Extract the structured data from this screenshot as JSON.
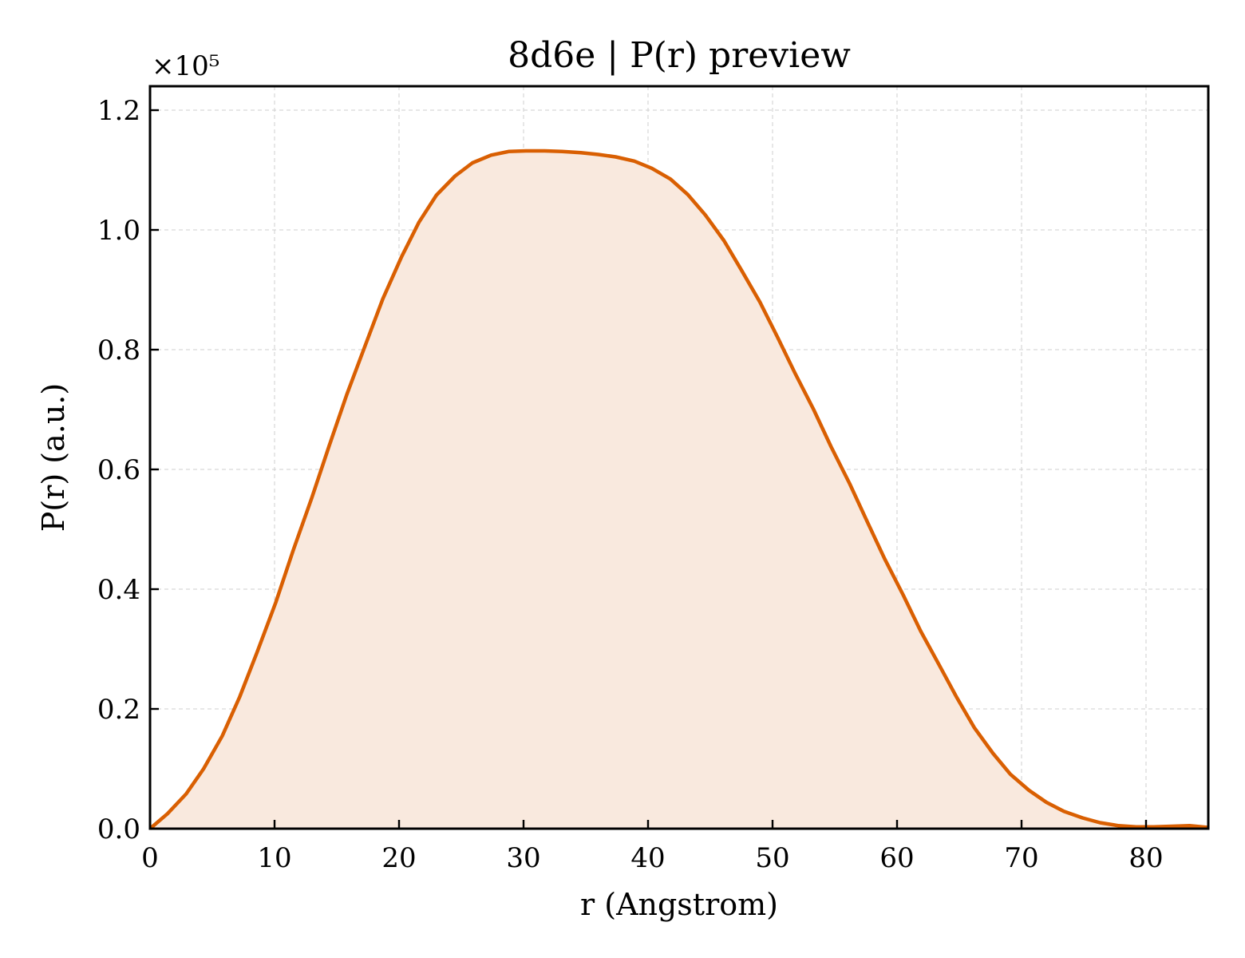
{
  "chart_data": {
    "type": "area",
    "title": "8d6e | P(r) preview",
    "xlabel": "r (Angstrom)",
    "ylabel": "P(r) (a.u.)",
    "y_offset_label": "×10⁵",
    "xlim": [
      0,
      85
    ],
    "ylim": [
      0,
      1.24
    ],
    "y_scale_factor": 100000,
    "grid": true,
    "x_ticks": [
      0,
      10,
      20,
      30,
      40,
      50,
      60,
      70,
      80
    ],
    "x_tick_labels": [
      "0",
      "10",
      "20",
      "30",
      "40",
      "50",
      "60",
      "70",
      "80"
    ],
    "y_ticks": [
      0.0,
      0.2,
      0.4,
      0.6,
      0.8,
      1.0,
      1.2
    ],
    "y_tick_labels": [
      "0.0",
      "0.2",
      "0.4",
      "0.6",
      "0.8",
      "1.0",
      "1.2"
    ],
    "colors": {
      "line": "#d95f02",
      "fill": "#f9e9de"
    },
    "series": [
      {
        "x": [
          0,
          1.4,
          2.9,
          4.3,
          5.8,
          7.2,
          8.6,
          10.1,
          11.5,
          13.0,
          14.4,
          15.8,
          17.3,
          18.7,
          20.2,
          21.6,
          23.0,
          24.5,
          25.9,
          27.4,
          28.8,
          30.2,
          31.7,
          33.1,
          34.6,
          36.0,
          37.4,
          38.9,
          40.3,
          41.8,
          43.2,
          44.6,
          46.1,
          47.5,
          49.0,
          50.4,
          51.8,
          53.3,
          54.7,
          56.2,
          57.6,
          59.0,
          60.5,
          61.9,
          63.4,
          64.8,
          66.2,
          67.7,
          69.1,
          70.6,
          72.0,
          73.4,
          74.9,
          76.3,
          77.8,
          79.2,
          80.6,
          82.1,
          83.5,
          85.0
        ],
        "values": [
          0.0,
          0.025,
          0.058,
          0.1,
          0.155,
          0.22,
          0.295,
          0.378,
          0.465,
          0.553,
          0.64,
          0.725,
          0.808,
          0.885,
          0.955,
          1.013,
          1.058,
          1.09,
          1.112,
          1.125,
          1.131,
          1.132,
          1.132,
          1.131,
          1.129,
          1.126,
          1.122,
          1.115,
          1.103,
          1.085,
          1.059,
          1.025,
          0.982,
          0.933,
          0.879,
          0.821,
          0.761,
          0.7,
          0.638,
          0.576,
          0.513,
          0.451,
          0.39,
          0.33,
          0.273,
          0.219,
          0.169,
          0.126,
          0.091,
          0.064,
          0.044,
          0.029,
          0.018,
          0.01,
          0.005,
          0.003,
          0.003,
          0.004,
          0.005,
          0.002
        ]
      }
    ]
  }
}
